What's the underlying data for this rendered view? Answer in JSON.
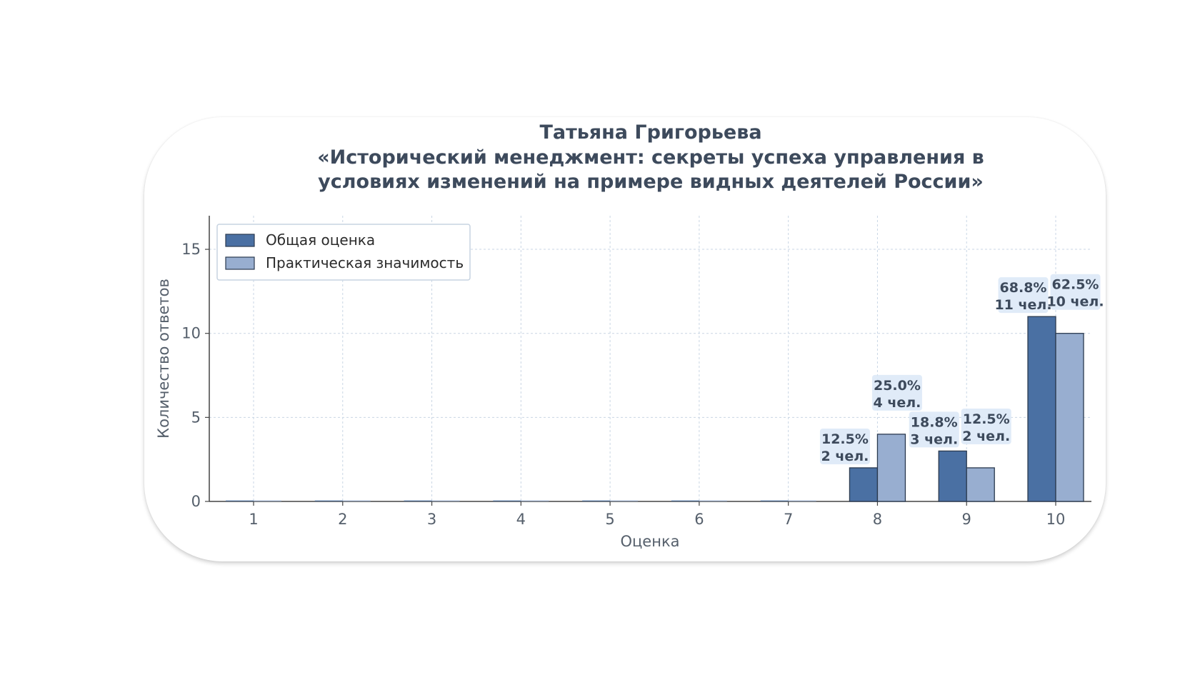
{
  "chart_data": {
    "type": "bar",
    "title_lines": [
      "Татьяна Григорьева",
      "«Исторический менеджмент: секреты успеха управления в",
      "условиях изменений на примере видных деятелей России»"
    ],
    "xlabel": "Оценка",
    "ylabel": "Количество ответов",
    "categories": [
      "1",
      "2",
      "3",
      "4",
      "5",
      "6",
      "7",
      "8",
      "9",
      "10"
    ],
    "ylim": [
      0,
      17
    ],
    "yticks": [
      0,
      5,
      10,
      15
    ],
    "grid": true,
    "legend_position": "top-left",
    "series": [
      {
        "name": "Общая оценка",
        "color": "#4a70a3",
        "values": [
          0,
          0,
          0,
          0,
          0,
          0,
          0,
          2,
          3,
          11
        ],
        "labels": [
          null,
          null,
          null,
          null,
          null,
          null,
          null,
          [
            "12.5%",
            "2 чел."
          ],
          [
            "18.8%",
            "3 чел."
          ],
          [
            "68.8%",
            "11 чел."
          ]
        ]
      },
      {
        "name": "Практическая значимость",
        "color": "#98aed0",
        "values": [
          0,
          0,
          0,
          0,
          0,
          0,
          0,
          4,
          2,
          10
        ],
        "labels": [
          null,
          null,
          null,
          null,
          null,
          null,
          null,
          [
            "25.0%",
            "4 чел."
          ],
          [
            "12.5%",
            "2 чел."
          ],
          [
            "62.5%",
            "10 чел."
          ]
        ]
      }
    ]
  }
}
